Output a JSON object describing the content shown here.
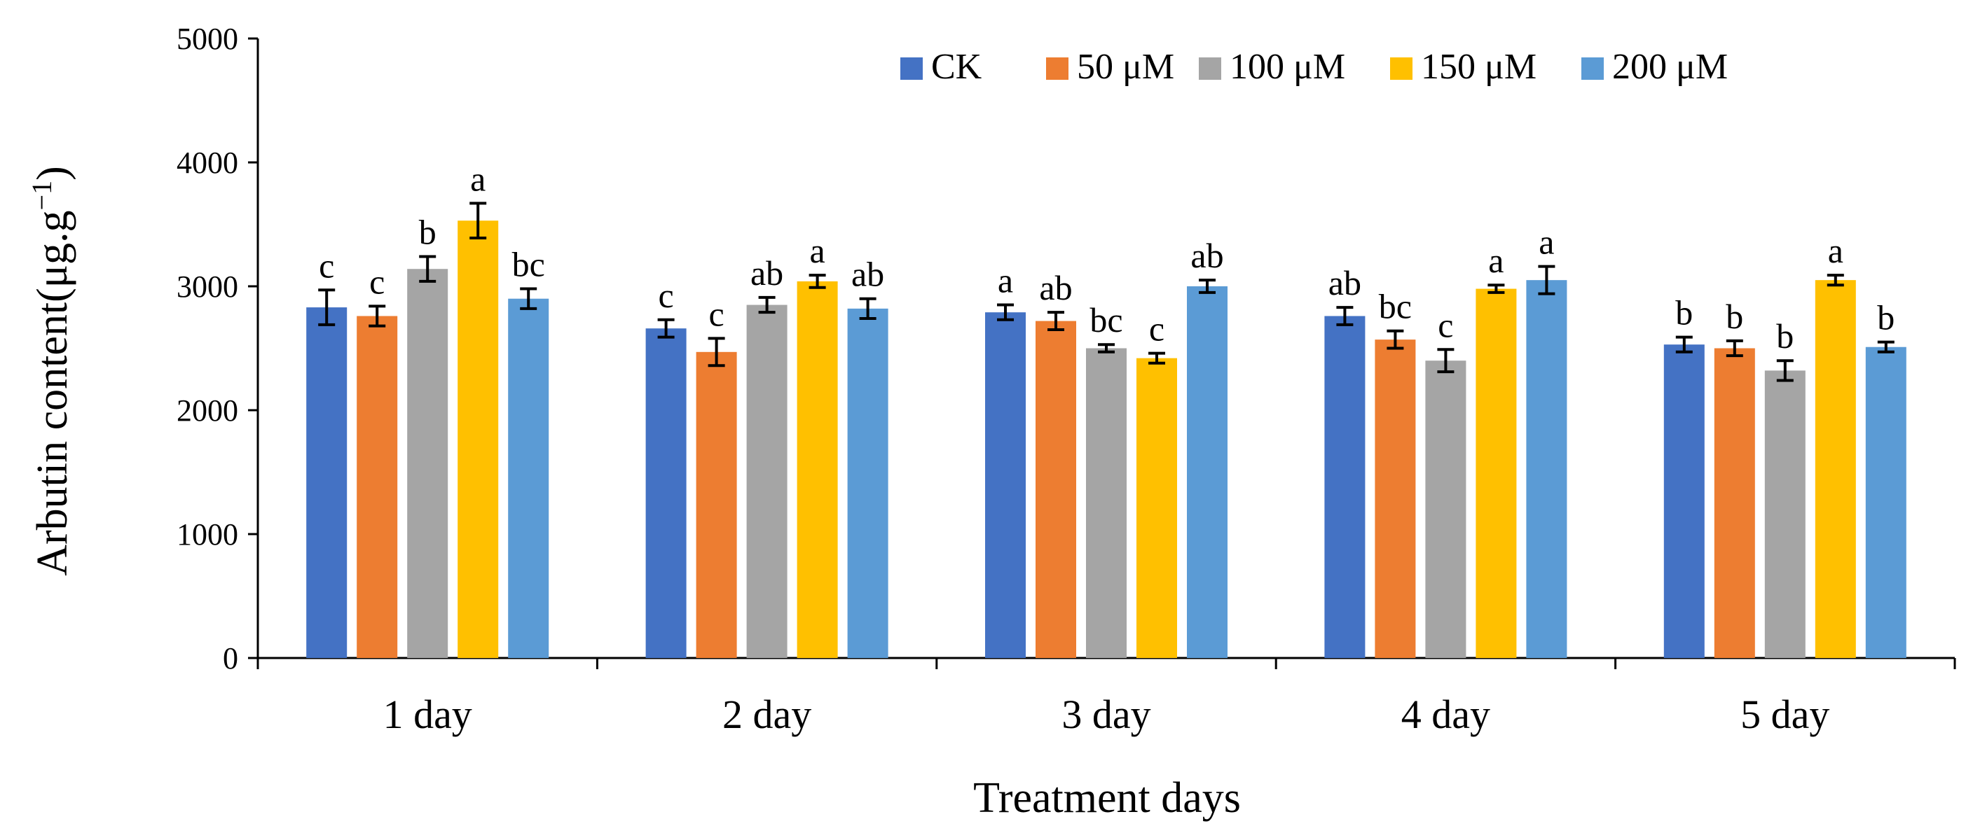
{
  "chart_data": {
    "type": "bar",
    "xlabel": "Treatment days",
    "ylabel_main": "Arbutin content(μg.g",
    "ylabel_sup": "−1",
    "ylabel_close": ")",
    "ylim": [
      0,
      5000
    ],
    "yticks": [
      0,
      1000,
      2000,
      3000,
      4000,
      5000
    ],
    "yticks_labels": [
      "0",
      "1000",
      "2000",
      "3000",
      "4000",
      "5000"
    ],
    "categories": [
      "1 day",
      "2 day",
      "3 day",
      "4 day",
      "5 day"
    ],
    "legend_position": "top-right",
    "grid": false,
    "series": [
      {
        "name": "CK",
        "color": "#4472C4",
        "values": [
          2830,
          2660,
          2790,
          2760,
          2530
        ],
        "errors": [
          140,
          70,
          60,
          70,
          60
        ],
        "labels": [
          "c",
          "c",
          "a",
          "ab",
          "b"
        ]
      },
      {
        "name": "50 μM",
        "color": "#ED7D31",
        "values": [
          2760,
          2470,
          2720,
          2570,
          2500
        ],
        "errors": [
          80,
          110,
          70,
          70,
          60
        ],
        "labels": [
          "c",
          "c",
          "ab",
          "bc",
          "b"
        ]
      },
      {
        "name": "100 μM",
        "color": "#A5A5A5",
        "values": [
          3140,
          2850,
          2500,
          2400,
          2320
        ],
        "errors": [
          100,
          60,
          30,
          90,
          80
        ],
        "labels": [
          "b",
          "ab",
          "bc",
          "c",
          "b"
        ]
      },
      {
        "name": "150 μM",
        "color": "#FFC000",
        "values": [
          3530,
          3040,
          2420,
          2980,
          3050
        ],
        "errors": [
          140,
          50,
          40,
          30,
          40
        ],
        "labels": [
          "a",
          "a",
          "c",
          "a",
          "a"
        ]
      },
      {
        "name": "200 μM",
        "color": "#5B9BD5",
        "values": [
          2900,
          2820,
          3000,
          3050,
          2510
        ],
        "errors": [
          80,
          80,
          50,
          110,
          40
        ],
        "labels": [
          "bc",
          "ab",
          "ab",
          "a",
          "b"
        ]
      }
    ]
  }
}
